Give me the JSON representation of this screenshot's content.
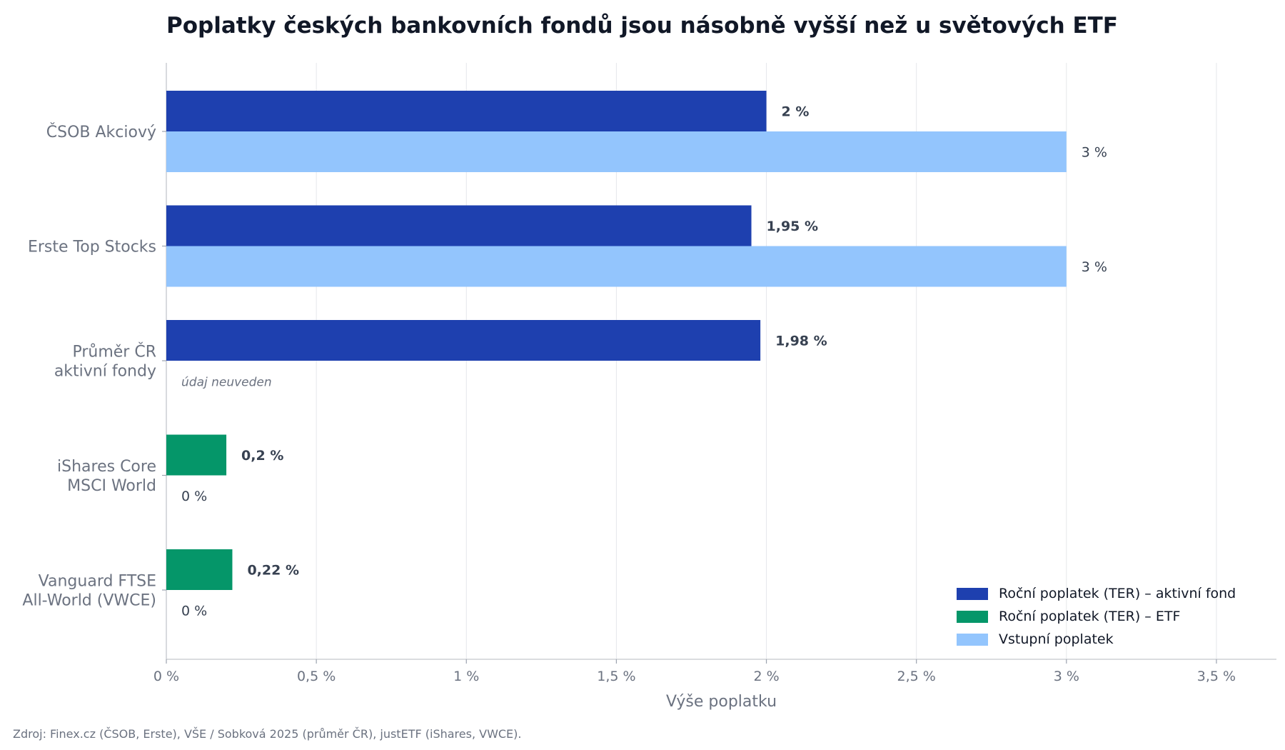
{
  "chart_data": {
    "type": "bar",
    "orientation": "horizontal",
    "title": "Poplatky českých bankovních fondů jsou násobně vyšší než u světových ETF",
    "xlabel": "Výše poplatku",
    "ylabel": "",
    "xlim": [
      0,
      3.7
    ],
    "x_ticks": [
      0,
      0.5,
      1,
      1.5,
      2,
      2.5,
      3,
      3.5
    ],
    "x_tick_labels": [
      "0 %",
      "0,5 %",
      "1 %",
      "1,5 %",
      "2 %",
      "2,5 %",
      "3 %",
      "3,5 %"
    ],
    "grid": "vertical",
    "legend_position": "bottom-right",
    "categories": [
      [
        "ČSOB Akciový"
      ],
      [
        "Erste Top Stocks"
      ],
      [
        "Průměr ČR",
        "aktivní fondy"
      ],
      [
        "iShares Core",
        "MSCI World"
      ],
      [
        "Vanguard FTSE",
        "All-World (VWCE)"
      ]
    ],
    "ter": {
      "values": [
        2,
        1.95,
        1.98,
        0.2,
        0.22
      ],
      "labels": [
        "2 %",
        "1,95 %",
        "1,98 %",
        "0,2 %",
        "0,22 %"
      ],
      "kinds": [
        "active",
        "active",
        "active",
        "etf",
        "etf"
      ]
    },
    "entry": {
      "values": [
        3,
        3,
        null,
        0,
        0
      ],
      "labels": [
        "3 %",
        "3 %",
        "údaj neuveden",
        "0 %",
        "0 %"
      ]
    },
    "series": [
      {
        "name": "Roční poplatek (TER) – aktivní fond",
        "color": "#1e40af"
      },
      {
        "name": "Roční poplatek (TER) – ETF",
        "color": "#059669"
      },
      {
        "name": "Vstupní poplatek",
        "color": "#93c5fd"
      }
    ]
  },
  "source": "Zdroj: Finex.cz (ČSOB, Erste), VŠE / Sobková 2025 (průměr ČR), justETF (iShares, VWCE)."
}
